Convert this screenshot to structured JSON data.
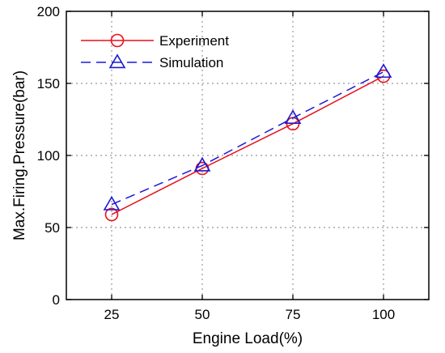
{
  "chart_data": {
    "type": "line",
    "x": [
      25,
      50,
      75,
      100
    ],
    "categories": [
      "25",
      "50",
      "75",
      "100"
    ],
    "xlabel": "Engine Load(%)",
    "ylabel": "Max.Firing.Pressure(bar)",
    "xlim": [
      12.5,
      112.5
    ],
    "ylim": [
      0,
      200
    ],
    "yticks": [
      0,
      50,
      100,
      150,
      200
    ],
    "ytick_labels": [
      "0",
      "50",
      "100",
      "150",
      "200"
    ],
    "grid": true,
    "legend_position": "top-left",
    "series": [
      {
        "name": "Experiment",
        "values": [
          59,
          91,
          122,
          155
        ],
        "color": "#e8101a",
        "marker": "circle",
        "line_style": "solid"
      },
      {
        "name": "Simulation",
        "values": [
          66,
          93,
          126,
          158
        ],
        "color": "#1a1ad8",
        "marker": "triangle",
        "line_style": "dashed"
      }
    ]
  }
}
